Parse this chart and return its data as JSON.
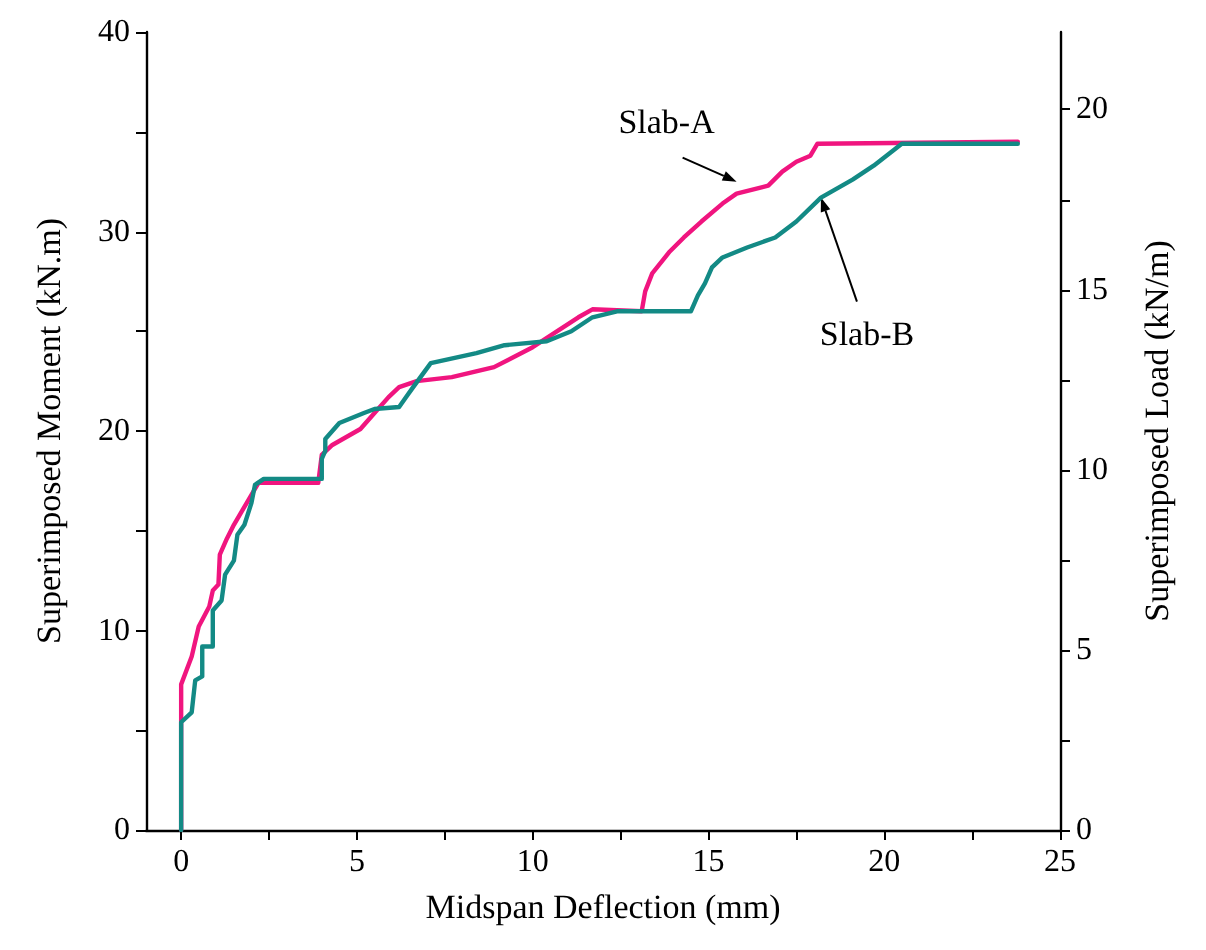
{
  "chart_data": {
    "type": "line",
    "xlabel": "Midspan Deflection (mm)",
    "ylabel": "Superimposed Moment (kN.m)",
    "y2label": "Superimposed Load (kN/m)",
    "xlim": [
      -1,
      25
    ],
    "xticks": [
      0,
      {
        "value": 2.5,
        "label": null
      },
      5,
      {
        "value": 7.5,
        "label": null
      },
      10,
      {
        "value": 12.5,
        "label": null
      },
      15,
      {
        "value": 17.5,
        "label": null
      },
      20,
      {
        "value": 22.5,
        "label": null
      },
      25
    ],
    "ylim": [
      0,
      40
    ],
    "yticks": [
      0,
      {
        "value": 5,
        "label": null
      },
      10,
      {
        "value": 15,
        "label": null
      },
      20,
      {
        "value": 25,
        "label": null
      },
      30,
      {
        "value": 35,
        "label": null
      },
      40
    ],
    "y2lim": [
      0,
      22.15
    ],
    "y2ticks": [
      0,
      {
        "value": 2.5,
        "label": null
      },
      5,
      {
        "value": 7.5,
        "label": null
      },
      10,
      {
        "value": 12.5,
        "label": null
      },
      15,
      {
        "value": 17.5,
        "label": null
      },
      20
    ],
    "grid": false,
    "marker": "none",
    "line_style": "solid",
    "series": [
      {
        "color": "#f0157f",
        "x": [
          0,
          0,
          0,
          0.3,
          0.5,
          0.8,
          0.9,
          1.06,
          1.1,
          1.3,
          1.5,
          1.9,
          2.2,
          3.9,
          4.0,
          4.3,
          5.1,
          5.5,
          5.9,
          6.2,
          6.7,
          7.7,
          8.9,
          10.0,
          11.3,
          11.7,
          13.1,
          13.2,
          13.4,
          13.9,
          14.3,
          14.8,
          15.4,
          15.8,
          16.7,
          17.1,
          17.5,
          17.9,
          18.1,
          23.8
        ],
        "values": [
          0,
          6.8,
          7.3,
          8.7,
          10.2,
          11.2,
          12,
          12.3,
          13.8,
          14.6,
          15.3,
          16.5,
          17.4,
          17.4,
          18.8,
          19.3,
          20.1,
          20.9,
          21.7,
          22.2,
          22.5,
          22.7,
          23.2,
          24.2,
          25.7,
          26.1,
          26.0,
          27.0,
          27.9,
          29.0,
          29.7,
          30.5,
          31.4,
          31.9,
          32.3,
          33.0,
          33.5,
          33.8,
          34.4,
          34.5
        ]
      },
      {
        "color": "#138a85",
        "x": [
          0,
          0,
          0.3,
          0.4,
          0.6,
          0.6,
          0.9,
          0.9,
          1.15,
          1.25,
          1.5,
          1.6,
          1.8,
          2.0,
          2.1,
          2.35,
          4.0,
          4.0,
          4.1,
          4.1,
          4.5,
          5.2,
          5.5,
          6.2,
          6.4,
          6.6,
          7.1,
          8.4,
          9.2,
          10.4,
          11.1,
          11.7,
          12.4,
          14.5,
          14.7,
          14.9,
          15.1,
          15.4,
          16.1,
          16.9,
          17.5,
          18.2,
          19.1,
          19.7,
          20.5,
          23.8
        ],
        "values": [
          0,
          5.4,
          5.9,
          7.5,
          7.7,
          9.2,
          9.2,
          11.0,
          11.5,
          12.8,
          13.5,
          14.8,
          15.3,
          16.4,
          17.3,
          17.6,
          17.6,
          18.6,
          19.0,
          19.6,
          20.4,
          20.9,
          21.1,
          21.2,
          21.7,
          22.2,
          23.4,
          23.9,
          24.3,
          24.5,
          25.0,
          25.7,
          26.0,
          26.0,
          26.8,
          27.4,
          28.2,
          28.7,
          29.2,
          29.7,
          30.5,
          31.7,
          32.6,
          33.3,
          34.4,
          34.4
        ]
      }
    ],
    "annotations": [
      {
        "text": "Slab-A",
        "x": 15.8,
        "y": 32.5
      },
      {
        "text": "Slab-B",
        "x": 18.2,
        "y": 31.7
      }
    ]
  }
}
